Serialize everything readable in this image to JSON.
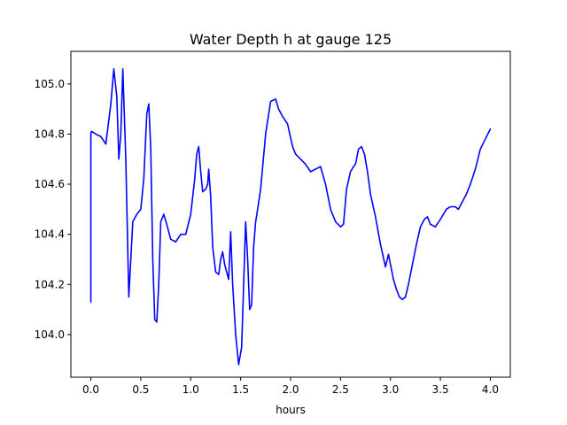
{
  "chart_data": {
    "type": "line",
    "title": "Water Depth h at gauge 125",
    "xlabel": "hours",
    "ylabel": "",
    "xlim": [
      -0.2,
      4.2
    ],
    "ylim": [
      103.83,
      105.13
    ],
    "xticks": [
      0.0,
      0.5,
      1.0,
      1.5,
      2.0,
      2.5,
      3.0,
      3.5,
      4.0
    ],
    "xtick_labels": [
      "0.0",
      "0.5",
      "1.0",
      "1.5",
      "2.0",
      "2.5",
      "3.0",
      "3.5",
      "4.0"
    ],
    "yticks": [
      104.0,
      104.2,
      104.4,
      104.6,
      104.8,
      105.0
    ],
    "ytick_labels": [
      "104.0",
      "104.2",
      "104.4",
      "104.6",
      "104.8",
      "105.0"
    ],
    "grid": false,
    "legend": "none",
    "series": [
      {
        "color": "#0000ff",
        "x": [
          0.0,
          0.0,
          0.0,
          0.005,
          0.01,
          0.05,
          0.1,
          0.15,
          0.2,
          0.23,
          0.26,
          0.28,
          0.3,
          0.32,
          0.35,
          0.38,
          0.42,
          0.46,
          0.5,
          0.53,
          0.56,
          0.58,
          0.6,
          0.62,
          0.64,
          0.66,
          0.68,
          0.7,
          0.73,
          0.76,
          0.8,
          0.85,
          0.9,
          0.95,
          1.0,
          1.04,
          1.06,
          1.08,
          1.1,
          1.12,
          1.15,
          1.17,
          1.18,
          1.2,
          1.22,
          1.25,
          1.28,
          1.3,
          1.32,
          1.34,
          1.36,
          1.38,
          1.4,
          1.42,
          1.45,
          1.48,
          1.51,
          1.53,
          1.55,
          1.57,
          1.59,
          1.61,
          1.63,
          1.65,
          1.67,
          1.7,
          1.75,
          1.8,
          1.85,
          1.88,
          1.92,
          1.97,
          2.02,
          2.05,
          2.1,
          2.15,
          2.2,
          2.25,
          2.3,
          2.35,
          2.4,
          2.45,
          2.5,
          2.53,
          2.56,
          2.6,
          2.63,
          2.65,
          2.68,
          2.71,
          2.74,
          2.77,
          2.8,
          2.85,
          2.9,
          2.95,
          2.98,
          3.0,
          3.03,
          3.06,
          3.09,
          3.12,
          3.15,
          3.18,
          3.22,
          3.26,
          3.3,
          3.34,
          3.37,
          3.4,
          3.45,
          3.5,
          3.53,
          3.56,
          3.6,
          3.65,
          3.68,
          3.72,
          3.76,
          3.8,
          3.85,
          3.9,
          3.95,
          4.0
        ],
        "y": [
          104.23,
          104.13,
          104.8,
          104.81,
          104.81,
          104.8,
          104.79,
          104.76,
          104.92,
          105.06,
          104.95,
          104.7,
          104.8,
          105.06,
          104.7,
          104.15,
          104.45,
          104.48,
          104.5,
          104.62,
          104.88,
          104.92,
          104.74,
          104.3,
          104.06,
          104.05,
          104.2,
          104.45,
          104.48,
          104.44,
          104.38,
          104.37,
          104.4,
          104.4,
          104.48,
          104.62,
          104.72,
          104.75,
          104.65,
          104.57,
          104.58,
          104.6,
          104.66,
          104.55,
          104.35,
          104.25,
          104.24,
          104.3,
          104.33,
          104.28,
          104.25,
          104.22,
          104.41,
          104.2,
          104.0,
          103.88,
          103.95,
          104.2,
          104.45,
          104.3,
          104.1,
          104.12,
          104.35,
          104.45,
          104.5,
          104.58,
          104.8,
          104.93,
          104.94,
          104.9,
          104.87,
          104.84,
          104.75,
          104.72,
          104.7,
          104.68,
          104.65,
          104.66,
          104.67,
          104.6,
          104.5,
          104.45,
          104.43,
          104.44,
          104.58,
          104.65,
          104.67,
          104.68,
          104.74,
          104.75,
          104.72,
          104.65,
          104.56,
          104.47,
          104.36,
          104.27,
          104.32,
          104.28,
          104.22,
          104.18,
          104.15,
          104.14,
          104.15,
          104.2,
          104.28,
          104.36,
          104.43,
          104.46,
          104.47,
          104.44,
          104.43,
          104.46,
          104.48,
          104.5,
          104.51,
          104.51,
          104.5,
          104.53,
          104.56,
          104.6,
          104.66,
          104.74,
          104.78,
          104.82
        ]
      }
    ]
  }
}
